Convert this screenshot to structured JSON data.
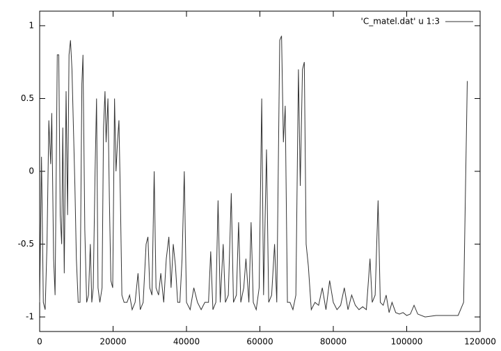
{
  "chart_data": {
    "type": "line",
    "x": [
      0,
      500,
      1000,
      1500,
      2000,
      2500,
      3000,
      3300,
      3800,
      4200,
      4800,
      5200,
      5600,
      6000,
      6300,
      6700,
      7200,
      7600,
      8000,
      8400,
      8800,
      9200,
      9600,
      10000,
      10500,
      11000,
      11500,
      11800,
      12300,
      12800,
      13300,
      13800,
      14200,
      14600,
      15100,
      15500,
      15900,
      16400,
      17000,
      17400,
      17800,
      18100,
      18600,
      19000,
      19400,
      19900,
      20400,
      20800,
      21200,
      21600,
      22000,
      22400,
      23000,
      23800,
      24500,
      25200,
      26000,
      26800,
      27400,
      28200,
      29000,
      29500,
      30000,
      30600,
      31200,
      31700,
      32400,
      33000,
      33800,
      34500,
      35200,
      35800,
      36400,
      37000,
      37600,
      38200,
      38800,
      39400,
      40000,
      41000,
      42000,
      43000,
      44000,
      45000,
      46000,
      46600,
      47200,
      48000,
      48600,
      49200,
      50000,
      50600,
      51400,
      52200,
      52800,
      53600,
      54200,
      54800,
      55600,
      56200,
      57000,
      57600,
      58200,
      59000,
      59800,
      60500,
      61000,
      61800,
      62400,
      63200,
      64000,
      64600,
      65400,
      65900,
      66400,
      66900,
      67500,
      68200,
      69000,
      69800,
      70500,
      71000,
      71600,
      72100,
      72600,
      73200,
      74000,
      75000,
      76000,
      77000,
      78000,
      79000,
      80000,
      81000,
      82000,
      83000,
      84000,
      85000,
      86000,
      87000,
      88000,
      89000,
      90000,
      90600,
      91400,
      92200,
      92800,
      93600,
      94400,
      95200,
      96000,
      97000,
      98000,
      99000,
      100000,
      101000,
      102000,
      103000,
      105000,
      108000,
      110000,
      112000,
      114000,
      115500,
      116500
    ],
    "series": [
      {
        "name": "'C_matel.dat' u 1:3",
        "color": "#333333",
        "values": [
          -0.9,
          0.1,
          -0.9,
          -0.95,
          -0.5,
          0.35,
          0.05,
          0.4,
          -0.6,
          -0.85,
          0.8,
          0.8,
          -0.3,
          -0.5,
          0.3,
          -0.7,
          0.55,
          -0.3,
          0.8,
          0.9,
          0.7,
          0.3,
          -0.1,
          -0.6,
          -0.9,
          -0.9,
          0.6,
          0.8,
          -0.4,
          -0.9,
          -0.85,
          -0.5,
          -0.9,
          -0.8,
          0.0,
          0.5,
          -0.8,
          -0.9,
          -0.8,
          0.3,
          0.55,
          0.2,
          0.5,
          -0.2,
          -0.75,
          -0.8,
          0.5,
          0.0,
          0.2,
          0.35,
          -0.2,
          -0.85,
          -0.9,
          -0.9,
          -0.85,
          -0.95,
          -0.9,
          -0.7,
          -0.95,
          -0.9,
          -0.5,
          -0.45,
          -0.8,
          -0.85,
          0.0,
          -0.8,
          -0.85,
          -0.7,
          -0.9,
          -0.6,
          -0.45,
          -0.8,
          -0.5,
          -0.65,
          -0.9,
          -0.9,
          -0.6,
          0.0,
          -0.9,
          -0.95,
          -0.8,
          -0.9,
          -0.95,
          -0.9,
          -0.9,
          -0.55,
          -0.95,
          -0.9,
          -0.2,
          -0.9,
          -0.5,
          -0.9,
          -0.85,
          -0.15,
          -0.9,
          -0.85,
          -0.35,
          -0.9,
          -0.8,
          -0.6,
          -0.9,
          -0.35,
          -0.9,
          -0.95,
          -0.8,
          0.5,
          -0.85,
          0.15,
          -0.9,
          -0.85,
          -0.5,
          -0.9,
          0.9,
          0.93,
          0.2,
          0.45,
          -0.9,
          -0.9,
          -0.95,
          -0.85,
          0.7,
          -0.1,
          0.7,
          0.75,
          -0.5,
          -0.65,
          -0.95,
          -0.9,
          -0.92,
          -0.8,
          -0.95,
          -0.75,
          -0.9,
          -0.95,
          -0.92,
          -0.8,
          -0.95,
          -0.85,
          -0.92,
          -0.95,
          -0.93,
          -0.95,
          -0.6,
          -0.9,
          -0.85,
          -0.2,
          -0.9,
          -0.92,
          -0.85,
          -0.97,
          -0.9,
          -0.97,
          -0.98,
          -0.97,
          -0.99,
          -0.98,
          -0.92,
          -0.98,
          -1.0,
          -0.99,
          -0.99,
          -0.99,
          -0.99,
          -0.9,
          0.62
        ]
      }
    ],
    "xlim": [
      0,
      120000
    ],
    "xticks": [
      0,
      20000,
      40000,
      60000,
      80000,
      100000,
      120000
    ],
    "ylim": [
      -1.1,
      1.1
    ],
    "yticks": [
      -1,
      -0.5,
      0,
      0.5,
      1
    ],
    "legend": "top-right"
  }
}
